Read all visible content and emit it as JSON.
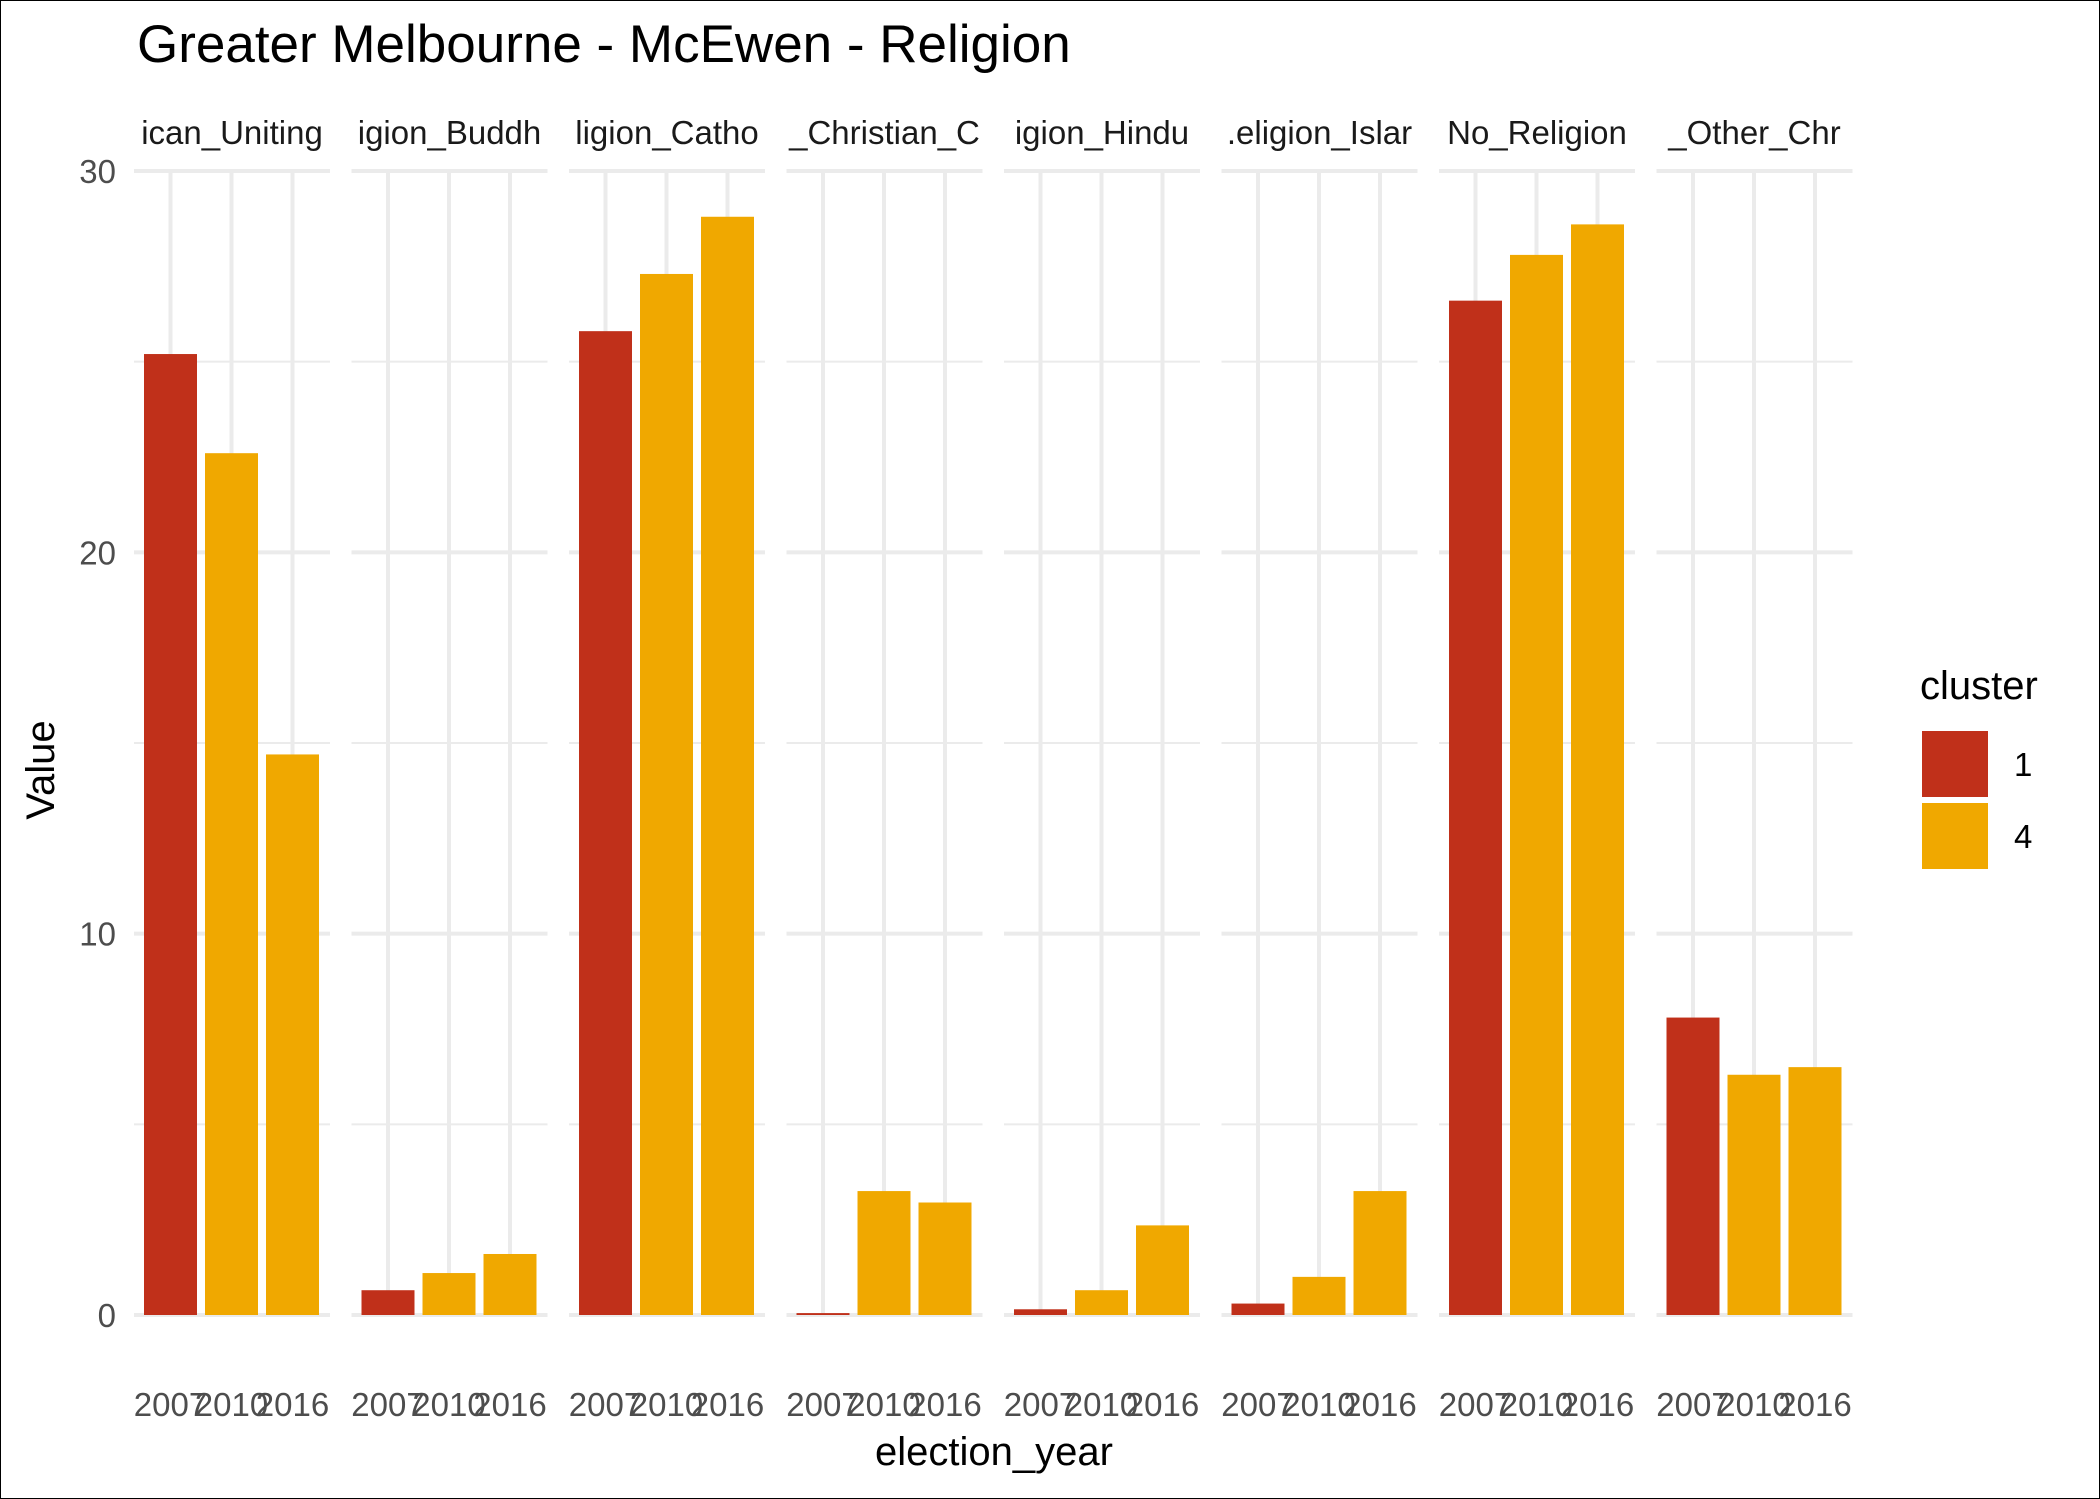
{
  "chart_data": {
    "type": "bar",
    "title": "Greater Melbourne - McEwen - Religion",
    "xlabel": "election_year",
    "ylabel": "Value",
    "ylim": [
      0,
      30
    ],
    "y_ticks": [
      "0",
      "10",
      "20",
      "30"
    ],
    "grid": true,
    "facet_strip_labels": [
      "ican_Uniting",
      "igion_Buddh",
      "ligion_Catho",
      "_Christian_C",
      "igion_Hindu",
      ".eligion_Islar",
      "No_Religion",
      "_Other_Chr"
    ],
    "categories": [
      "2007",
      "2010",
      "2016"
    ],
    "legend": {
      "title": "cluster",
      "position": "right",
      "entries": [
        {
          "label": "1",
          "color": "#c0301a"
        },
        {
          "label": "4",
          "color": "#f0a800"
        }
      ]
    },
    "facets": [
      {
        "bars": [
          {
            "year": "2007",
            "value": 25.2,
            "cluster": "1"
          },
          {
            "year": "2010",
            "value": 22.6,
            "cluster": "4"
          },
          {
            "year": "2016",
            "value": 14.7,
            "cluster": "4"
          }
        ]
      },
      {
        "bars": [
          {
            "year": "2007",
            "value": 0.65,
            "cluster": "1"
          },
          {
            "year": "2010",
            "value": 1.1,
            "cluster": "4"
          },
          {
            "year": "2016",
            "value": 1.6,
            "cluster": "4"
          }
        ]
      },
      {
        "bars": [
          {
            "year": "2007",
            "value": 25.8,
            "cluster": "1"
          },
          {
            "year": "2010",
            "value": 27.3,
            "cluster": "4"
          },
          {
            "year": "2016",
            "value": 28.8,
            "cluster": "4"
          }
        ]
      },
      {
        "bars": [
          {
            "year": "2007",
            "value": 0.05,
            "cluster": "1"
          },
          {
            "year": "2010",
            "value": 3.25,
            "cluster": "4"
          },
          {
            "year": "2016",
            "value": 2.95,
            "cluster": "4"
          }
        ]
      },
      {
        "bars": [
          {
            "year": "2007",
            "value": 0.15,
            "cluster": "1"
          },
          {
            "year": "2010",
            "value": 0.65,
            "cluster": "4"
          },
          {
            "year": "2016",
            "value": 2.35,
            "cluster": "4"
          }
        ]
      },
      {
        "bars": [
          {
            "year": "2007",
            "value": 0.3,
            "cluster": "1"
          },
          {
            "year": "2010",
            "value": 1.0,
            "cluster": "4"
          },
          {
            "year": "2016",
            "value": 3.25,
            "cluster": "4"
          }
        ]
      },
      {
        "bars": [
          {
            "year": "2007",
            "value": 26.6,
            "cluster": "1"
          },
          {
            "year": "2010",
            "value": 27.8,
            "cluster": "4"
          },
          {
            "year": "2016",
            "value": 28.6,
            "cluster": "4"
          }
        ]
      },
      {
        "bars": [
          {
            "year": "2007",
            "value": 7.8,
            "cluster": "1"
          },
          {
            "year": "2010",
            "value": 6.3,
            "cluster": "4"
          },
          {
            "year": "2016",
            "value": 6.5,
            "cluster": "4"
          }
        ]
      }
    ]
  }
}
